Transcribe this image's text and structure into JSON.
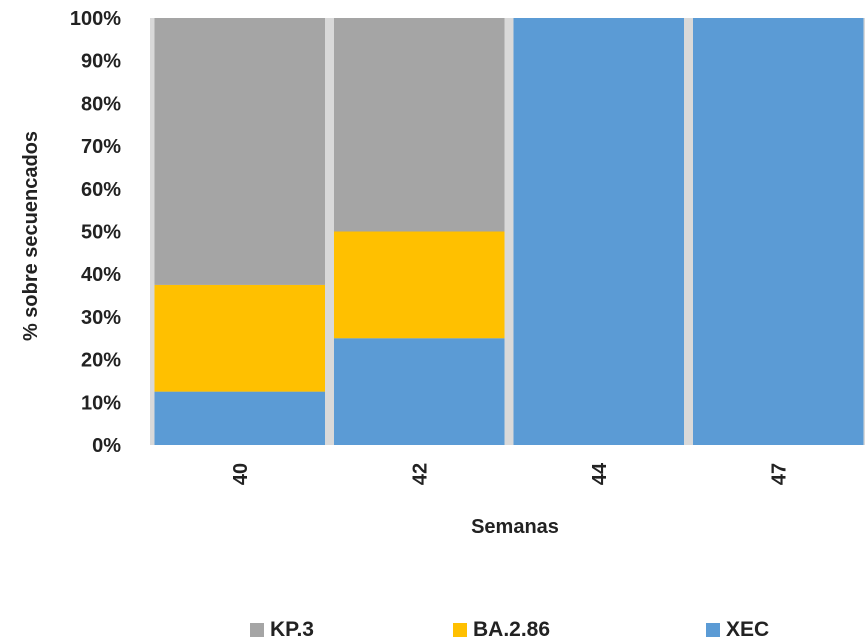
{
  "chart_data": {
    "type": "bar",
    "stacked": true,
    "categories": [
      "40",
      "42",
      "44",
      "47"
    ],
    "series": [
      {
        "name": "XEC",
        "color": "#5b9bd5",
        "values": [
          12.5,
          25,
          100,
          100
        ]
      },
      {
        "name": "BA.2.86",
        "color": "#ffc000",
        "values": [
          25,
          25,
          0,
          0
        ]
      },
      {
        "name": "KP.3",
        "color": "#a5a5a5",
        "values": [
          62.5,
          50,
          0,
          0
        ]
      }
    ],
    "title": "",
    "xlabel": "Semanas",
    "ylabel": "% sobre secuencados",
    "ylim": [
      0,
      100
    ],
    "yticks": [
      "0%",
      "10%",
      "20%",
      "30%",
      "40%",
      "50%",
      "60%",
      "70%",
      "80%",
      "90%",
      "100%"
    ],
    "grid": false,
    "legend": {
      "position": "bottom",
      "entries": [
        {
          "label": "KP.3",
          "color": "#a5a5a5"
        },
        {
          "label": "BA.2.86",
          "color": "#ffc000"
        },
        {
          "label": "XEC",
          "color": "#5b9bd5"
        }
      ]
    }
  }
}
